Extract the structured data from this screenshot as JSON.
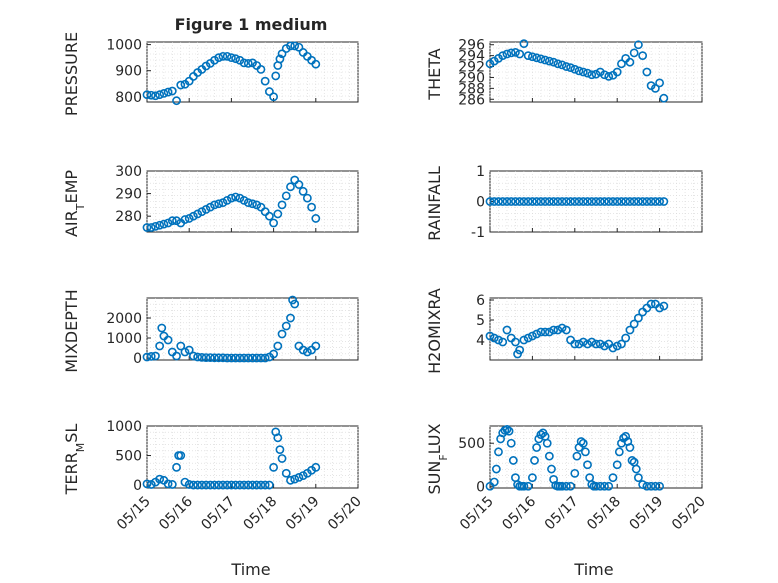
{
  "figure": {
    "title": "Figure 1 medium",
    "marker_color": "#0072BD",
    "xlabel": "Time"
  },
  "chart_data": [
    {
      "type": "scatter",
      "ylabel": "PRESSURE",
      "ylim": [
        780,
        1010
      ],
      "yticks": [
        800,
        900,
        1000
      ],
      "xlim": [
        0,
        5
      ],
      "xticklabels": [],
      "grid": true,
      "x": [
        0.0,
        0.1,
        0.2,
        0.3,
        0.4,
        0.5,
        0.6,
        0.7,
        0.8,
        0.9,
        1.0,
        1.1,
        1.2,
        1.3,
        1.4,
        1.5,
        1.6,
        1.7,
        1.8,
        1.9,
        2.0,
        2.1,
        2.2,
        2.3,
        2.4,
        2.5,
        2.6,
        2.7,
        2.8,
        2.9,
        3.0,
        3.05,
        3.1,
        3.15,
        3.2,
        3.3,
        3.4,
        3.5,
        3.6,
        3.7,
        3.8,
        3.9,
        4.0
      ],
      "y": [
        808,
        806,
        804,
        808,
        813,
        818,
        822,
        785,
        845,
        848,
        860,
        878,
        893,
        905,
        918,
        928,
        940,
        950,
        955,
        955,
        950,
        946,
        940,
        930,
        928,
        930,
        920,
        905,
        860,
        820,
        800,
        880,
        920,
        945,
        965,
        985,
        995,
        995,
        990,
        970,
        955,
        940,
        925
      ]
    },
    {
      "type": "scatter",
      "ylabel": "THETA",
      "ylim": [
        285.5,
        296.5
      ],
      "yticks": [
        286,
        288,
        290,
        292,
        294,
        296
      ],
      "xlim": [
        0,
        5
      ],
      "xticklabels": [],
      "grid": true,
      "x": [
        0.0,
        0.1,
        0.2,
        0.3,
        0.4,
        0.5,
        0.6,
        0.7,
        0.8,
        0.9,
        1.0,
        1.1,
        1.2,
        1.3,
        1.4,
        1.5,
        1.6,
        1.7,
        1.8,
        1.9,
        2.0,
        2.1,
        2.2,
        2.3,
        2.4,
        2.5,
        2.6,
        2.7,
        2.8,
        2.9,
        3.0,
        3.1,
        3.2,
        3.3,
        3.4,
        3.5,
        3.6,
        3.7,
        3.8,
        3.9,
        4.0,
        4.1
      ],
      "y": [
        292.5,
        293.0,
        293.5,
        294.0,
        294.3,
        294.5,
        294.6,
        294.3,
        296.2,
        294.0,
        293.8,
        293.6,
        293.4,
        293.2,
        293.0,
        292.8,
        292.5,
        292.3,
        292.0,
        291.8,
        291.5,
        291.2,
        291.0,
        290.8,
        290.5,
        290.6,
        291.0,
        290.5,
        290.2,
        290.4,
        291.0,
        292.5,
        293.5,
        292.8,
        294.5,
        296.0,
        294.0,
        291.0,
        288.5,
        288.0,
        289.0,
        286.2
      ]
    },
    {
      "type": "scatter",
      "ylabel": "AIR_TEMP",
      "ylim": [
        273,
        300
      ],
      "yticks": [
        280,
        290,
        300
      ],
      "xlim": [
        0,
        5
      ],
      "xticklabels": [],
      "grid": true,
      "x": [
        0.0,
        0.1,
        0.2,
        0.3,
        0.4,
        0.5,
        0.6,
        0.7,
        0.8,
        0.9,
        1.0,
        1.1,
        1.2,
        1.3,
        1.4,
        1.5,
        1.6,
        1.7,
        1.8,
        1.9,
        2.0,
        2.1,
        2.2,
        2.3,
        2.4,
        2.5,
        2.6,
        2.7,
        2.8,
        2.9,
        3.0,
        3.1,
        3.2,
        3.3,
        3.4,
        3.5,
        3.6,
        3.7,
        3.8,
        3.9,
        4.0
      ],
      "y": [
        275,
        275,
        275.5,
        276,
        276.5,
        277,
        278,
        278,
        277,
        278.5,
        279,
        280,
        281,
        282,
        283,
        284,
        285,
        285.5,
        286,
        287,
        288,
        288.5,
        288,
        287,
        286,
        285.5,
        285,
        284,
        282,
        280,
        277,
        281,
        285,
        289,
        293,
        296,
        294,
        291,
        288,
        284,
        279
      ]
    },
    {
      "type": "scatter",
      "ylabel": "RAINFALL",
      "ylim": [
        -1,
        1
      ],
      "yticks": [
        -1,
        0,
        1
      ],
      "xlim": [
        0,
        5
      ],
      "xticklabels": [],
      "grid": true,
      "x": [
        0.0,
        0.1,
        0.2,
        0.3,
        0.4,
        0.5,
        0.6,
        0.7,
        0.8,
        0.9,
        1.0,
        1.1,
        1.2,
        1.3,
        1.4,
        1.5,
        1.6,
        1.7,
        1.8,
        1.9,
        2.0,
        2.1,
        2.2,
        2.3,
        2.4,
        2.5,
        2.6,
        2.7,
        2.8,
        2.9,
        3.0,
        3.1,
        3.2,
        3.3,
        3.4,
        3.5,
        3.6,
        3.7,
        3.8,
        3.9,
        4.0,
        4.1
      ],
      "y": [
        0,
        0,
        0,
        0,
        0,
        0,
        0,
        0,
        0,
        0,
        0,
        0,
        0,
        0,
        0,
        0,
        0,
        0,
        0,
        0,
        0,
        0,
        0,
        0,
        0,
        0,
        0,
        0,
        0,
        0,
        0,
        0,
        0,
        0,
        0,
        0,
        0,
        0,
        0,
        0,
        0,
        0
      ]
    },
    {
      "type": "scatter",
      "ylabel": "MIXDEPTH",
      "ylim": [
        -100,
        3000
      ],
      "yticks": [
        0,
        1000,
        2000
      ],
      "xlim": [
        0,
        5
      ],
      "xticklabels": [],
      "grid": true,
      "x": [
        0.0,
        0.1,
        0.2,
        0.3,
        0.35,
        0.4,
        0.5,
        0.6,
        0.7,
        0.8,
        0.9,
        1.0,
        1.1,
        1.2,
        1.3,
        1.4,
        1.5,
        1.6,
        1.7,
        1.8,
        1.9,
        2.0,
        2.1,
        2.2,
        2.3,
        2.4,
        2.5,
        2.6,
        2.7,
        2.8,
        2.9,
        3.0,
        3.1,
        3.2,
        3.3,
        3.4,
        3.45,
        3.5,
        3.6,
        3.7,
        3.8,
        3.9,
        4.0
      ],
      "y": [
        50,
        80,
        100,
        600,
        1500,
        1100,
        900,
        300,
        100,
        600,
        300,
        400,
        100,
        50,
        30,
        20,
        20,
        10,
        10,
        10,
        0,
        0,
        0,
        0,
        0,
        0,
        0,
        0,
        0,
        0,
        50,
        200,
        600,
        1200,
        1600,
        2000,
        2900,
        2700,
        600,
        400,
        300,
        400,
        600
      ]
    },
    {
      "type": "scatter",
      "ylabel": "H2OMIXRA",
      "ylim": [
        3.0,
        6.1
      ],
      "yticks": [
        4,
        5,
        6
      ],
      "xlim": [
        0,
        5
      ],
      "xticklabels": [],
      "grid": true,
      "x": [
        0.0,
        0.1,
        0.2,
        0.3,
        0.4,
        0.5,
        0.6,
        0.65,
        0.7,
        0.8,
        0.9,
        1.0,
        1.1,
        1.2,
        1.3,
        1.4,
        1.5,
        1.6,
        1.7,
        1.8,
        1.9,
        2.0,
        2.1,
        2.2,
        2.3,
        2.4,
        2.5,
        2.6,
        2.7,
        2.8,
        2.9,
        3.0,
        3.1,
        3.2,
        3.3,
        3.4,
        3.5,
        3.6,
        3.7,
        3.8,
        3.9,
        4.0,
        4.1
      ],
      "y": [
        4.2,
        4.1,
        4.0,
        3.9,
        4.5,
        4.1,
        3.9,
        3.3,
        3.5,
        4.0,
        4.1,
        4.2,
        4.3,
        4.4,
        4.4,
        4.4,
        4.5,
        4.5,
        4.6,
        4.5,
        4.0,
        3.8,
        3.8,
        3.9,
        3.8,
        3.9,
        3.8,
        3.8,
        3.7,
        3.8,
        3.6,
        3.7,
        3.8,
        4.1,
        4.5,
        4.8,
        5.1,
        5.4,
        5.6,
        5.8,
        5.8,
        5.6,
        5.7
      ]
    },
    {
      "type": "scatter",
      "ylabel": "TERR_MSL",
      "ylim": [
        -50,
        1000
      ],
      "yticks": [
        0,
        500,
        1000
      ],
      "xlim": [
        0,
        5
      ],
      "xticklabels": [
        "05/15",
        "05/16",
        "05/17",
        "05/18",
        "05/19",
        "05/20"
      ],
      "grid": true,
      "x": [
        0.0,
        0.1,
        0.2,
        0.3,
        0.4,
        0.5,
        0.6,
        0.7,
        0.75,
        0.8,
        0.9,
        1.0,
        1.1,
        1.2,
        1.3,
        1.4,
        1.5,
        1.6,
        1.7,
        1.8,
        1.9,
        2.0,
        2.1,
        2.2,
        2.3,
        2.4,
        2.5,
        2.6,
        2.7,
        2.8,
        2.9,
        3.0,
        3.05,
        3.1,
        3.15,
        3.2,
        3.3,
        3.4,
        3.5,
        3.6,
        3.7,
        3.8,
        3.9,
        4.0
      ],
      "y": [
        20,
        10,
        50,
        100,
        80,
        20,
        10,
        300,
        500,
        500,
        50,
        10,
        0,
        0,
        0,
        0,
        0,
        0,
        0,
        0,
        0,
        0,
        0,
        0,
        0,
        0,
        0,
        0,
        0,
        0,
        0,
        300,
        900,
        800,
        600,
        450,
        200,
        80,
        100,
        130,
        160,
        200,
        250,
        300
      ]
    },
    {
      "type": "scatter",
      "ylabel": "SUN_FLUX",
      "ylim": [
        -20,
        700
      ],
      "yticks": [
        0,
        500
      ],
      "xlim": [
        0,
        5
      ],
      "xticklabels": [
        "05/15",
        "05/16",
        "05/17",
        "05/18",
        "05/19",
        "05/20"
      ],
      "grid": true,
      "x": [
        0.0,
        0.1,
        0.15,
        0.2,
        0.25,
        0.3,
        0.35,
        0.4,
        0.45,
        0.5,
        0.55,
        0.6,
        0.65,
        0.7,
        0.75,
        0.8,
        0.9,
        1.0,
        1.05,
        1.1,
        1.15,
        1.2,
        1.25,
        1.3,
        1.35,
        1.4,
        1.45,
        1.5,
        1.55,
        1.6,
        1.65,
        1.7,
        1.8,
        1.9,
        2.0,
        2.05,
        2.1,
        2.15,
        2.2,
        2.25,
        2.3,
        2.35,
        2.4,
        2.45,
        2.5,
        2.6,
        2.7,
        2.8,
        2.9,
        3.0,
        3.05,
        3.1,
        3.15,
        3.2,
        3.25,
        3.3,
        3.35,
        3.4,
        3.45,
        3.5,
        3.6,
        3.7,
        3.8,
        3.9,
        4.0
      ],
      "y": [
        0,
        50,
        200,
        400,
        550,
        620,
        650,
        660,
        640,
        500,
        300,
        100,
        20,
        0,
        0,
        0,
        0,
        100,
        300,
        450,
        550,
        600,
        620,
        580,
        500,
        350,
        200,
        80,
        10,
        0,
        0,
        0,
        0,
        0,
        150,
        350,
        450,
        520,
        500,
        400,
        250,
        100,
        20,
        0,
        0,
        0,
        0,
        0,
        100,
        250,
        400,
        500,
        560,
        580,
        520,
        450,
        300,
        280,
        200,
        100,
        20,
        0,
        0,
        0,
        0
      ]
    }
  ]
}
